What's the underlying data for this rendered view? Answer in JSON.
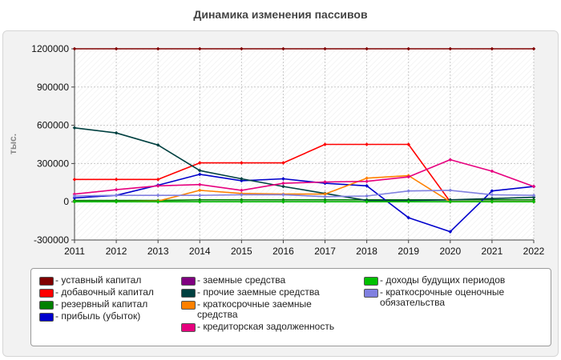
{
  "chart_data": {
    "type": "line",
    "title": "Динамика изменения пассивов",
    "ylabel": "тыс.",
    "xlabel": "",
    "x": [
      2011,
      2012,
      2013,
      2014,
      2015,
      2016,
      2017,
      2018,
      2019,
      2020,
      2021,
      2022
    ],
    "ylim": [
      -300000,
      1200000
    ],
    "yticks": [
      -300000,
      0,
      300000,
      600000,
      900000,
      1200000
    ],
    "ytick_labels": [
      "-300000",
      "0",
      "300000",
      "600000",
      "900000",
      "1200000"
    ],
    "grid": true,
    "legend_position": "bottom",
    "series": [
      {
        "name": "- уставный капитал",
        "color": "#800000",
        "values": [
          1200000,
          1200000,
          1200000,
          1200000,
          1200000,
          1200000,
          1200000,
          1200000,
          1200000,
          1200000,
          1200000,
          1200000
        ]
      },
      {
        "name": "- добавочный капитал",
        "color": "#ff0000",
        "values": [
          175000,
          175000,
          175000,
          305000,
          305000,
          305000,
          450000,
          450000,
          450000,
          0,
          0,
          0
        ]
      },
      {
        "name": "- резервный капитал",
        "color": "#008000",
        "values": [
          10000,
          10000,
          10000,
          15000,
          15000,
          15000,
          15000,
          15000,
          15000,
          15000,
          15000,
          15000
        ]
      },
      {
        "name": "- прибыль (убыток)",
        "color": "#0000cc",
        "values": [
          30000,
          50000,
          130000,
          215000,
          165000,
          180000,
          145000,
          125000,
          -125000,
          -235000,
          85000,
          120000
        ]
      },
      {
        "name": "- заемные средства",
        "color": "#800080",
        "values": [
          0,
          0,
          0,
          0,
          0,
          0,
          0,
          0,
          0,
          0,
          0,
          0
        ]
      },
      {
        "name": "- прочие заемные средства",
        "color": "#004040",
        "values": [
          580000,
          540000,
          445000,
          245000,
          180000,
          120000,
          65000,
          10000,
          10000,
          15000,
          25000,
          35000
        ]
      },
      {
        "name": "- краткосрочные заемные средства",
        "color": "#ff8000",
        "values": [
          0,
          0,
          5000,
          90000,
          65000,
          60000,
          60000,
          185000,
          205000,
          0,
          0,
          0
        ]
      },
      {
        "name": "- кредиторская задолженность",
        "color": "#e6007e",
        "values": [
          60000,
          95000,
          125000,
          135000,
          90000,
          145000,
          155000,
          160000,
          195000,
          330000,
          240000,
          120000
        ]
      },
      {
        "name": "- доходы будущих периодов",
        "color": "#00c000",
        "values": [
          0,
          0,
          0,
          0,
          0,
          0,
          0,
          0,
          0,
          0,
          0,
          0
        ]
      },
      {
        "name": "- краткосрочные оценочные обязательства",
        "color": "#8080e0",
        "values": [
          45000,
          50000,
          50000,
          50000,
          55000,
          55000,
          40000,
          45000,
          85000,
          90000,
          55000,
          50000
        ]
      }
    ]
  }
}
